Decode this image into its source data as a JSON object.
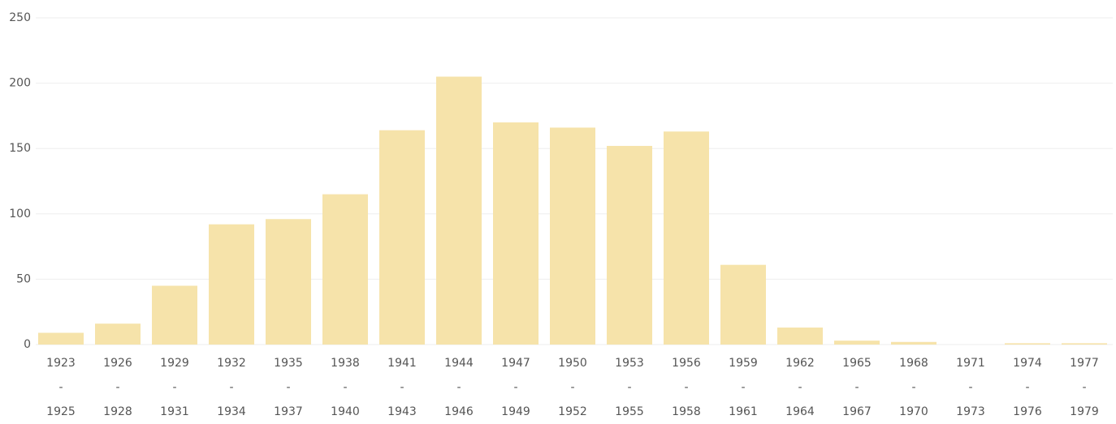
{
  "chart_data": {
    "type": "bar",
    "categories": [
      "1923\n-\n1925",
      "1926\n-\n1928",
      "1929\n-\n1931",
      "1932\n-\n1934",
      "1935\n-\n1937",
      "1938\n-\n1940",
      "1941\n-\n1943",
      "1944\n-\n1946",
      "1947\n-\n1949",
      "1950\n-\n1952",
      "1953\n-\n1955",
      "1956\n-\n1958",
      "1959\n-\n1961",
      "1962\n-\n1964",
      "1965\n-\n1967",
      "1968\n-\n1970",
      "1971\n-\n1973",
      "1974\n-\n1976",
      "1977\n-\n1979"
    ],
    "values": [
      9,
      16,
      45,
      92,
      96,
      115,
      164,
      205,
      170,
      166,
      152,
      163,
      61,
      13,
      3,
      2,
      0,
      1,
      1
    ],
    "color": "#f6e3aa",
    "ylim": [
      0,
      250
    ],
    "yticks": [
      0,
      50,
      100,
      150,
      200,
      250
    ],
    "grid": true
  }
}
